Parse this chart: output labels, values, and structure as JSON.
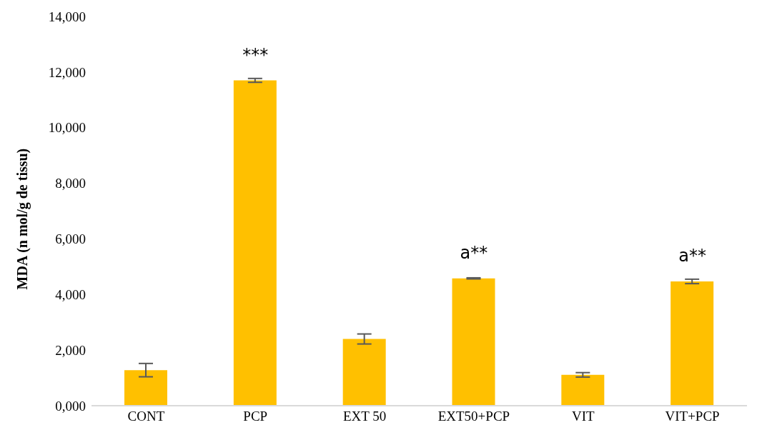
{
  "chart_data": {
    "type": "bar",
    "ylabel": "MDA (n mol/g de tissu)",
    "categories": [
      "CONT",
      "PCP",
      "EXT 50",
      "EXT50+PCP",
      "VIT",
      "VIT+PCP"
    ],
    "values": [
      1280,
      11700,
      2400,
      4580,
      1110,
      4470
    ],
    "errors": [
      240,
      70,
      180,
      20,
      80,
      80
    ],
    "color": "#ffc000",
    "ylim": [
      0,
      14000
    ],
    "yticks": [
      {
        "value": 0,
        "label": "0,000"
      },
      {
        "value": 2000,
        "label": "2,000"
      },
      {
        "value": 4000,
        "label": "4,000"
      },
      {
        "value": 6000,
        "label": "6,000"
      },
      {
        "value": 8000,
        "label": "8,000"
      },
      {
        "value": 10000,
        "label": "10,000"
      },
      {
        "value": 12000,
        "label": "12,000"
      },
      {
        "value": 14000,
        "label": "14,000"
      }
    ],
    "grid": false,
    "annotations": [
      {
        "text": "***",
        "x": "PCP",
        "y": 11700
      },
      {
        "text": "a**",
        "x": "EXT50+PCP",
        "y": 4580
      },
      {
        "text": "a**",
        "x": "VIT+PCP",
        "y": 4470
      }
    ]
  }
}
